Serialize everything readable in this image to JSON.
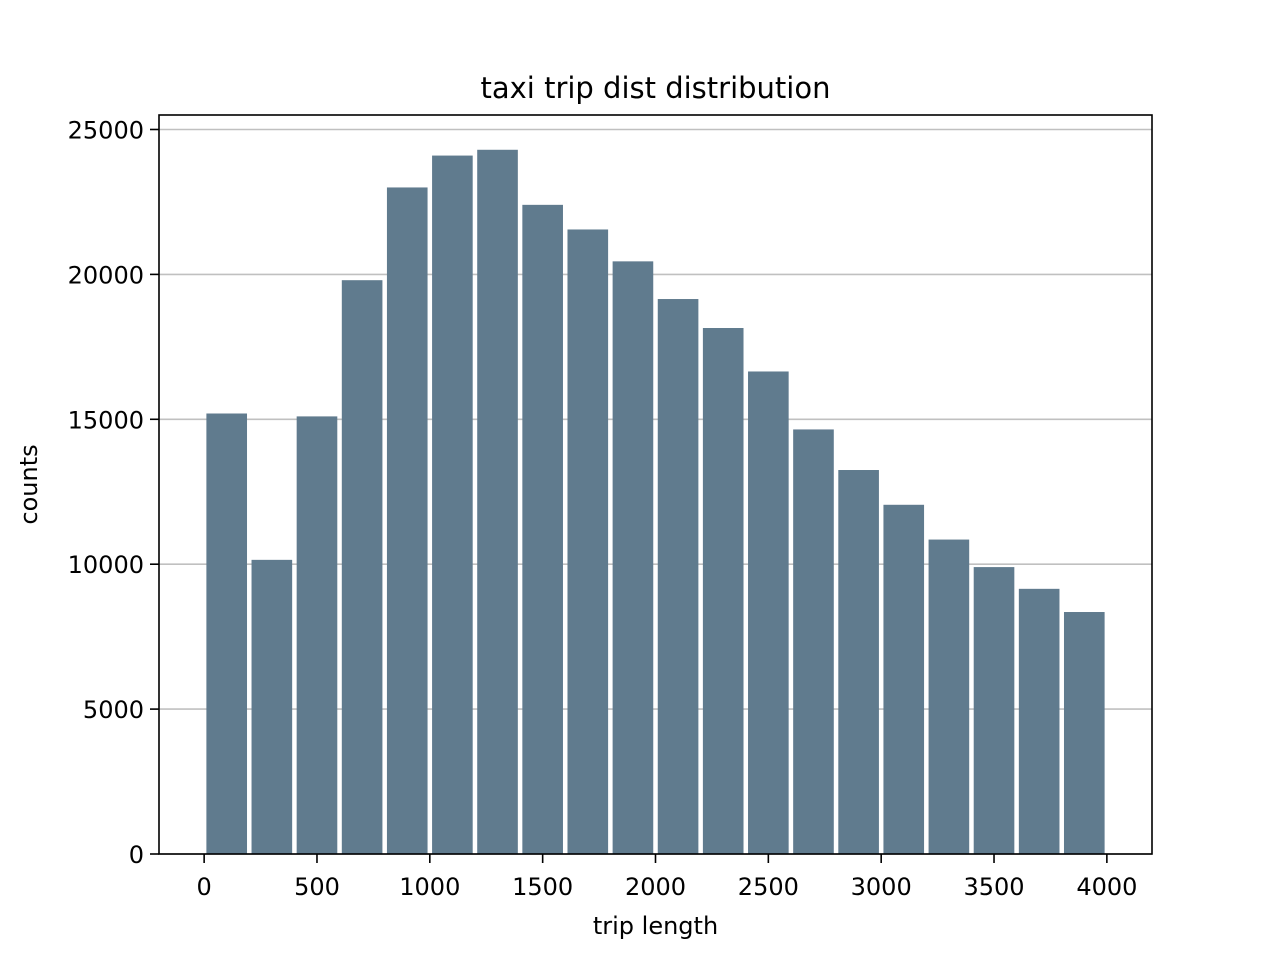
{
  "chart_data": {
    "type": "bar",
    "title": "taxi trip dist distribution",
    "xlabel": "trip length",
    "ylabel": "counts",
    "bin_width": 200,
    "bars": [
      {
        "x": 100,
        "value": 15200
      },
      {
        "x": 300,
        "value": 10150
      },
      {
        "x": 500,
        "value": 15100
      },
      {
        "x": 700,
        "value": 19800
      },
      {
        "x": 900,
        "value": 23000
      },
      {
        "x": 1100,
        "value": 24100
      },
      {
        "x": 1300,
        "value": 24300
      },
      {
        "x": 1500,
        "value": 22400
      },
      {
        "x": 1700,
        "value": 21550
      },
      {
        "x": 1900,
        "value": 20450
      },
      {
        "x": 2100,
        "value": 19150
      },
      {
        "x": 2300,
        "value": 18150
      },
      {
        "x": 2500,
        "value": 16650
      },
      {
        "x": 2700,
        "value": 14650
      },
      {
        "x": 2900,
        "value": 13250
      },
      {
        "x": 3100,
        "value": 12050
      },
      {
        "x": 3300,
        "value": 10850
      },
      {
        "x": 3500,
        "value": 9900
      },
      {
        "x": 3700,
        "value": 9150
      },
      {
        "x": 3900,
        "value": 8350
      }
    ],
    "xlim": [
      -200,
      4200
    ],
    "ylim": [
      0,
      25500
    ],
    "xticks": [
      0,
      500,
      1000,
      1500,
      2000,
      2500,
      3000,
      3500,
      4000
    ],
    "xtick_labels": [
      "0",
      "500",
      "1000",
      "1500",
      "2000",
      "2500",
      "3000",
      "3500",
      "4000"
    ],
    "yticks": [
      0,
      5000,
      10000,
      15000,
      20000,
      25000
    ],
    "ytick_labels": [
      "0",
      "5000",
      "10000",
      "15000",
      "20000",
      "25000"
    ],
    "grid": "y",
    "colors": {
      "bar": "#607b8e",
      "grid": "#c0c0c0",
      "axis": "#000000"
    }
  }
}
